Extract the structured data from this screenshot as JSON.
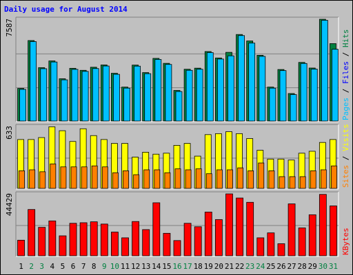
{
  "chart_data": {
    "type": "bar",
    "title": "Daily usage for August 2014",
    "colors": {
      "background": "#c0c0c0",
      "title": "#0000ff",
      "hits": "#008040",
      "files": "#00c0ff",
      "pages": "#00c0ff",
      "visits": "#ffff00",
      "sites": "#ff8000",
      "kbytes": "#ff0000",
      "weekday": "#000000",
      "weekend": "#008040"
    },
    "days": [
      "1",
      "2",
      "3",
      "4",
      "5",
      "6",
      "7",
      "8",
      "9",
      "10",
      "11",
      "12",
      "13",
      "14",
      "15",
      "16",
      "17",
      "18",
      "19",
      "20",
      "21",
      "22",
      "23",
      "24",
      "25",
      "26",
      "27",
      "28",
      "29",
      "30",
      "31"
    ],
    "weekend_days": [
      "2",
      "3",
      "9",
      "10",
      "16",
      "17",
      "23",
      "24",
      "30",
      "31"
    ],
    "panels": [
      {
        "id": "hits-files",
        "max_label": "7587",
        "ylim": [
          0,
          7587
        ],
        "right_labels": [
          {
            "text": "Pages",
            "color": "#00c0ff"
          },
          {
            "text": " / ",
            "color": "#000000"
          },
          {
            "text": "Files",
            "color": "#0000ff"
          },
          {
            "text": " / ",
            "color": "#000000"
          },
          {
            "text": "Hits",
            "color": "#008040"
          }
        ],
        "series": [
          {
            "name": "Hits",
            "values": [
              2430,
              6000,
              3980,
              4480,
              3150,
              3930,
              3780,
              4010,
              4180,
              3560,
              2530,
              4170,
              3610,
              4670,
              4300,
              2280,
              3860,
              3940,
              5180,
              4700,
              5120,
              6450,
              5970,
              4900,
              2530,
              3840,
              2050,
              4370,
              3950,
              7587,
              5770
            ]
          },
          {
            "name": "Files",
            "values": [
              2360,
              5920,
              3900,
              4400,
              3070,
              3850,
              3700,
              3910,
              4100,
              3480,
              2450,
              4090,
              3530,
              4590,
              4220,
              2200,
              3780,
              3860,
              5100,
              4620,
              4860,
              6370,
              5810,
              4820,
              2450,
              3760,
              1970,
              4290,
              3870,
              7510,
              5350
            ]
          }
        ]
      },
      {
        "id": "visits-sites",
        "max_label": "633",
        "ylim": [
          0,
          633
        ],
        "right_labels": [
          {
            "text": "Sites",
            "color": "#ff8000"
          },
          {
            "text": " / ",
            "color": "#000000"
          },
          {
            "text": "Visits",
            "color": "#ffff00"
          }
        ],
        "series": [
          {
            "name": "Visits",
            "values": [
              500,
              500,
              520,
              630,
              590,
              480,
              610,
              540,
              500,
              460,
              460,
              320,
              370,
              350,
              360,
              440,
              460,
              330,
              550,
              560,
              580,
              560,
              510,
              390,
              300,
              300,
              290,
              360,
              380,
              470,
              500
            ]
          },
          {
            "name": "Sites",
            "values": [
              180,
              190,
              170,
              250,
              220,
              220,
              220,
              230,
              220,
              160,
              180,
              140,
              190,
              190,
              160,
              200,
              190,
              200,
              150,
              190,
              190,
              210,
              180,
              260,
              180,
              120,
              120,
              120,
              180,
              190,
              230
            ]
          }
        ]
      },
      {
        "id": "kbytes",
        "max_label": "44429",
        "ylim": [
          0,
          44429
        ],
        "right_labels": [
          {
            "text": "KBytes",
            "color": "#ff0000"
          }
        ],
        "series": [
          {
            "name": "KBytes",
            "values": [
              11180,
              33220,
              20420,
              25020,
              14310,
              23310,
              23720,
              24380,
              22770,
              17000,
              12880,
              24580,
              18780,
              38040,
              16130,
              10920,
              23310,
              20830,
              31390,
              25990,
              44429,
              41460,
              38380,
              12880,
              16440,
              8640,
              37260,
              20010,
              29440,
              44050,
              35790
            ]
          }
        ]
      }
    ]
  }
}
